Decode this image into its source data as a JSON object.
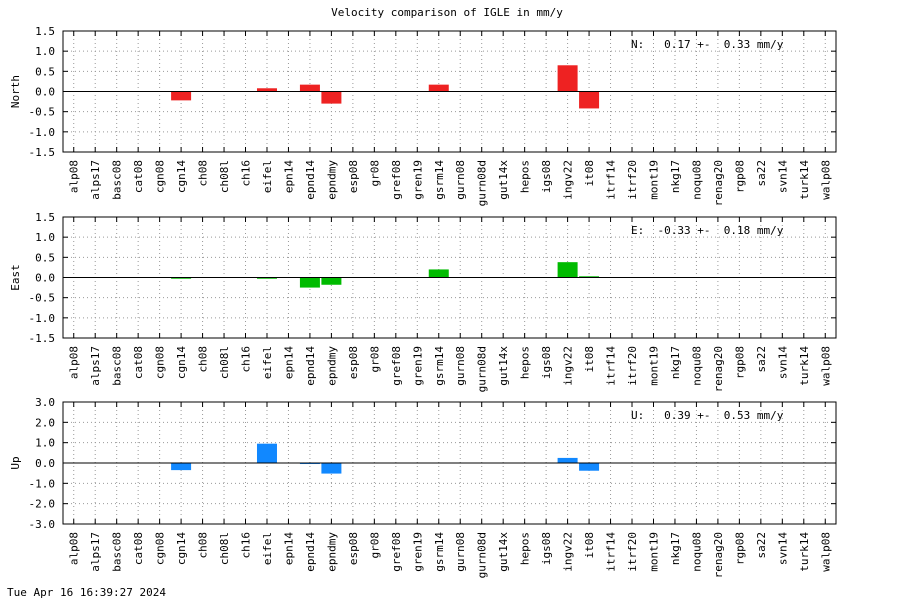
{
  "title": "Velocity comparison of IGLE in mm/y",
  "timestamp": "Tue Apr 16 16:39:27 2024",
  "chart_data": [
    {
      "type": "bar",
      "ylabel": "North",
      "ylim": [
        -1.5,
        1.5
      ],
      "yticks": [
        1.5,
        1.0,
        0.5,
        0.0,
        -0.5,
        -1.0,
        -1.5
      ],
      "tick_labels": [
        "1.5",
        "1.0",
        "0.5",
        "0.0",
        "-0.5",
        "-1.0",
        "-1.5"
      ],
      "grid": true,
      "color": "#ee2222",
      "annotation": "N:   0.17 +-  0.33 mm/y",
      "categories": [
        "alp08",
        "alps17",
        "basc08",
        "cat08",
        "cgn08",
        "cgn14",
        "ch08",
        "ch08l",
        "ch16",
        "eifel",
        "epn14",
        "epnd14",
        "epndmy",
        "esp08",
        "gr08",
        "gref08",
        "gren19",
        "gsrm14",
        "gurn08",
        "gurn08d",
        "gut14x",
        "hepos",
        "igs08",
        "ingv22",
        "it08",
        "itrf14",
        "itrf20",
        "mont19",
        "nkg17",
        "noqu08",
        "renag20",
        "rgp08",
        "sa22",
        "svn14",
        "turk14",
        "walp08"
      ],
      "values": [
        0,
        0,
        0,
        0,
        0,
        -0.22,
        0,
        0,
        0,
        0.08,
        0,
        0.17,
        -0.3,
        0,
        0,
        0,
        0,
        0.17,
        0,
        0,
        0,
        0,
        0,
        0.65,
        -0.42,
        0,
        0,
        0,
        0,
        0,
        0,
        0,
        0,
        0,
        0,
        0
      ]
    },
    {
      "type": "bar",
      "ylabel": "East",
      "ylim": [
        -1.5,
        1.5
      ],
      "yticks": [
        1.5,
        1.0,
        0.5,
        0.0,
        -0.5,
        -1.0,
        -1.5
      ],
      "tick_labels": [
        "1.5",
        "1.0",
        "0.5",
        "0.0",
        "-0.5",
        "-1.0",
        "-1.5"
      ],
      "grid": true,
      "color": "#00bb00",
      "annotation": "E:  -0.33 +-  0.18 mm/y",
      "categories": [
        "alp08",
        "alps17",
        "basc08",
        "cat08",
        "cgn08",
        "cgn14",
        "ch08",
        "ch08l",
        "ch16",
        "eifel",
        "epn14",
        "epnd14",
        "epndmy",
        "esp08",
        "gr08",
        "gref08",
        "gren19",
        "gsrm14",
        "gurn08",
        "gurn08d",
        "gut14x",
        "hepos",
        "igs08",
        "ingv22",
        "it08",
        "itrf14",
        "itrf20",
        "mont19",
        "nkg17",
        "noqu08",
        "renag20",
        "rgp08",
        "sa22",
        "svn14",
        "turk14",
        "walp08"
      ],
      "values": [
        0,
        0,
        0,
        0,
        0,
        -0.03,
        0,
        0,
        0,
        -0.03,
        0,
        -0.25,
        -0.18,
        0,
        0,
        0,
        0,
        0.2,
        0,
        0,
        0,
        0,
        0,
        0.38,
        0.03,
        0,
        0,
        0,
        0,
        0,
        0,
        0,
        0,
        0,
        0,
        0
      ]
    },
    {
      "type": "bar",
      "ylabel": "Up",
      "ylim": [
        -3.0,
        3.0
      ],
      "yticks": [
        3.0,
        2.0,
        1.0,
        0.0,
        -1.0,
        -2.0,
        -3.0
      ],
      "tick_labels": [
        "3.0",
        "2.0",
        "1.0",
        "0.0",
        "-1.0",
        "-2.0",
        "-3.0"
      ],
      "grid": true,
      "color": "#1188ff",
      "annotation": "U:   0.39 +-  0.53 mm/y",
      "categories": [
        "alp08",
        "alps17",
        "basc08",
        "cat08",
        "cgn08",
        "cgn14",
        "ch08",
        "ch08l",
        "ch16",
        "eifel",
        "epn14",
        "epnd14",
        "epndmy",
        "esp08",
        "gr08",
        "gref08",
        "gren19",
        "gsrm14",
        "gurn08",
        "gurn08d",
        "gut14x",
        "hepos",
        "igs08",
        "ingv22",
        "it08",
        "itrf14",
        "itrf20",
        "mont19",
        "nkg17",
        "noqu08",
        "renag20",
        "rgp08",
        "sa22",
        "svn14",
        "turk14",
        "walp08"
      ],
      "values": [
        0,
        0,
        0,
        0,
        0,
        -0.35,
        0,
        0,
        0,
        0.95,
        0,
        -0.05,
        -0.52,
        0,
        0,
        0,
        0,
        0,
        0,
        0,
        0,
        0,
        0,
        0.25,
        -0.38,
        0,
        0,
        0,
        0,
        0,
        0,
        0,
        0,
        0,
        0,
        0
      ]
    }
  ]
}
